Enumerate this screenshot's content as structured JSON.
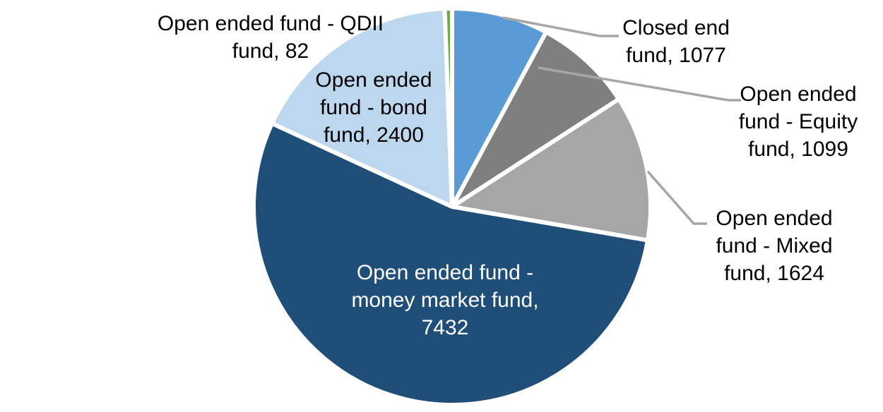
{
  "chart_data": {
    "type": "pie",
    "categories": [
      "Closed end fund",
      "Open ended fund - Equity fund",
      "Open ended fund - Mixed fund",
      "Open ended fund - money market fund",
      "Open ended fund - bond fund",
      "Open ended fund - QDII fund"
    ],
    "values": [
      1077,
      1099,
      1624,
      7432,
      2400,
      82
    ],
    "colors": [
      "#5B9BD5",
      "#7F7F7F",
      "#A6A6A6",
      "#1F4E79",
      "#BDD7EE",
      "#70AD47"
    ],
    "total": 13714,
    "start_angle_deg": 0,
    "direction": "clockwise",
    "slice_separator_color": "#FFFFFF",
    "leader_line_color": "#A6A6A6",
    "legend": "none",
    "data_label_format": "category, value"
  },
  "labels": {
    "qdii": {
      "lines": [
        "Open ended fund - QDII",
        "fund, 82"
      ],
      "color": "#000000"
    },
    "closed_end": {
      "lines": [
        "Closed end",
        "fund, 1077"
      ],
      "color": "#000000"
    },
    "equity": {
      "lines": [
        "Open ended",
        "fund - Equity",
        "fund, 1099"
      ],
      "color": "#000000"
    },
    "mixed": {
      "lines": [
        "Open ended",
        "fund - Mixed",
        "fund, 1624"
      ],
      "color": "#000000"
    },
    "bond": {
      "lines": [
        "Open ended",
        "fund - bond",
        "fund, 2400"
      ],
      "color": "#000000"
    },
    "money_market": {
      "lines": [
        "Open ended fund -",
        "money market fund,",
        "7432"
      ],
      "color": "#FFFFFF"
    }
  }
}
